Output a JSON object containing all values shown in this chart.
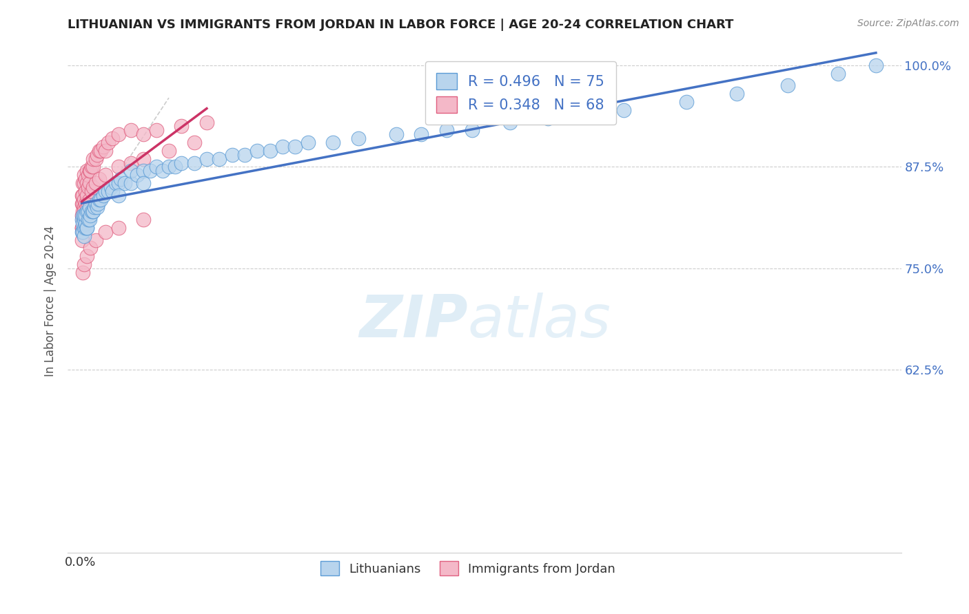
{
  "title": "LITHUANIAN VS IMMIGRANTS FROM JORDAN IN LABOR FORCE | AGE 20-24 CORRELATION CHART",
  "source": "Source: ZipAtlas.com",
  "ylabel": "In Labor Force | Age 20-24",
  "xlim": [
    -0.001,
    0.065
  ],
  "ylim": [
    0.4,
    1.02
  ],
  "yticks": [
    0.625,
    0.75,
    0.875,
    1.0
  ],
  "ytick_labels": [
    "62.5%",
    "75.0%",
    "87.5%",
    "100.0%"
  ],
  "xtick_val": 0.0,
  "xtick_right_val": 0.06,
  "series1_color": "#b8d4ed",
  "series1_edge": "#5b9bd5",
  "series2_color": "#f4b8c8",
  "series2_edge": "#e06080",
  "line1_color": "#4472c4",
  "line2_color": "#cc3366",
  "R1": 0.496,
  "N1": 75,
  "R2": 0.348,
  "N2": 68,
  "legend1_label": "Lithuanians",
  "legend2_label": "Immigrants from Jordan",
  "watermark_zip": "ZIP",
  "watermark_atlas": "atlas",
  "background_color": "#ffffff",
  "title_fontsize": 13,
  "series1_x": [
    0.0001,
    0.0001,
    0.0002,
    0.0002,
    0.0002,
    0.0003,
    0.0003,
    0.0003,
    0.0003,
    0.0004,
    0.0004,
    0.0004,
    0.0005,
    0.0005,
    0.0005,
    0.0006,
    0.0006,
    0.0007,
    0.0007,
    0.0008,
    0.0009,
    0.001,
    0.001,
    0.0011,
    0.0012,
    0.0013,
    0.0014,
    0.0015,
    0.0016,
    0.0018,
    0.002,
    0.0022,
    0.0024,
    0.0025,
    0.0028,
    0.003,
    0.003,
    0.0032,
    0.0035,
    0.004,
    0.004,
    0.0045,
    0.005,
    0.005,
    0.0055,
    0.006,
    0.0065,
    0.007,
    0.0075,
    0.008,
    0.009,
    0.01,
    0.011,
    0.012,
    0.013,
    0.014,
    0.015,
    0.016,
    0.017,
    0.018,
    0.02,
    0.022,
    0.025,
    0.027,
    0.029,
    0.031,
    0.034,
    0.037,
    0.04,
    0.043,
    0.048,
    0.052,
    0.056,
    0.06,
    0.063
  ],
  "series1_y": [
    0.795,
    0.81,
    0.805,
    0.815,
    0.795,
    0.8,
    0.81,
    0.79,
    0.815,
    0.8,
    0.805,
    0.815,
    0.8,
    0.82,
    0.8,
    0.82,
    0.81,
    0.825,
    0.81,
    0.815,
    0.82,
    0.82,
    0.82,
    0.825,
    0.83,
    0.825,
    0.83,
    0.835,
    0.835,
    0.84,
    0.845,
    0.845,
    0.85,
    0.845,
    0.855,
    0.855,
    0.84,
    0.86,
    0.855,
    0.855,
    0.87,
    0.865,
    0.87,
    0.855,
    0.87,
    0.875,
    0.87,
    0.875,
    0.875,
    0.88,
    0.88,
    0.885,
    0.885,
    0.89,
    0.89,
    0.895,
    0.895,
    0.9,
    0.9,
    0.905,
    0.905,
    0.91,
    0.915,
    0.915,
    0.92,
    0.92,
    0.93,
    0.935,
    0.94,
    0.945,
    0.955,
    0.965,
    0.975,
    0.99,
    1.0
  ],
  "series2_x": [
    0.0001,
    0.0001,
    0.0001,
    0.0001,
    0.0002,
    0.0002,
    0.0002,
    0.0002,
    0.0003,
    0.0003,
    0.0003,
    0.0003,
    0.0004,
    0.0004,
    0.0004,
    0.0005,
    0.0005,
    0.0005,
    0.0006,
    0.0006,
    0.0007,
    0.0007,
    0.0008,
    0.0009,
    0.001,
    0.001,
    0.0012,
    0.0013,
    0.0015,
    0.0016,
    0.0018,
    0.002,
    0.0022,
    0.0025,
    0.003,
    0.004,
    0.005,
    0.006,
    0.008,
    0.01,
    0.0001,
    0.0001,
    0.0002,
    0.0002,
    0.0003,
    0.0003,
    0.0004,
    0.0005,
    0.0006,
    0.0007,
    0.0009,
    0.001,
    0.0012,
    0.0015,
    0.002,
    0.003,
    0.004,
    0.005,
    0.007,
    0.009,
    0.0002,
    0.0003,
    0.0005,
    0.0008,
    0.0012,
    0.002,
    0.003,
    0.005
  ],
  "series2_y": [
    0.8,
    0.815,
    0.83,
    0.84,
    0.82,
    0.83,
    0.84,
    0.855,
    0.825,
    0.835,
    0.855,
    0.865,
    0.83,
    0.845,
    0.86,
    0.84,
    0.855,
    0.87,
    0.85,
    0.865,
    0.855,
    0.87,
    0.87,
    0.875,
    0.875,
    0.885,
    0.885,
    0.89,
    0.895,
    0.895,
    0.9,
    0.895,
    0.905,
    0.91,
    0.915,
    0.92,
    0.915,
    0.92,
    0.925,
    0.93,
    0.785,
    0.8,
    0.795,
    0.81,
    0.805,
    0.82,
    0.815,
    0.825,
    0.83,
    0.835,
    0.845,
    0.85,
    0.855,
    0.86,
    0.865,
    0.875,
    0.88,
    0.885,
    0.895,
    0.905,
    0.745,
    0.755,
    0.765,
    0.775,
    0.785,
    0.795,
    0.8,
    0.81
  ]
}
